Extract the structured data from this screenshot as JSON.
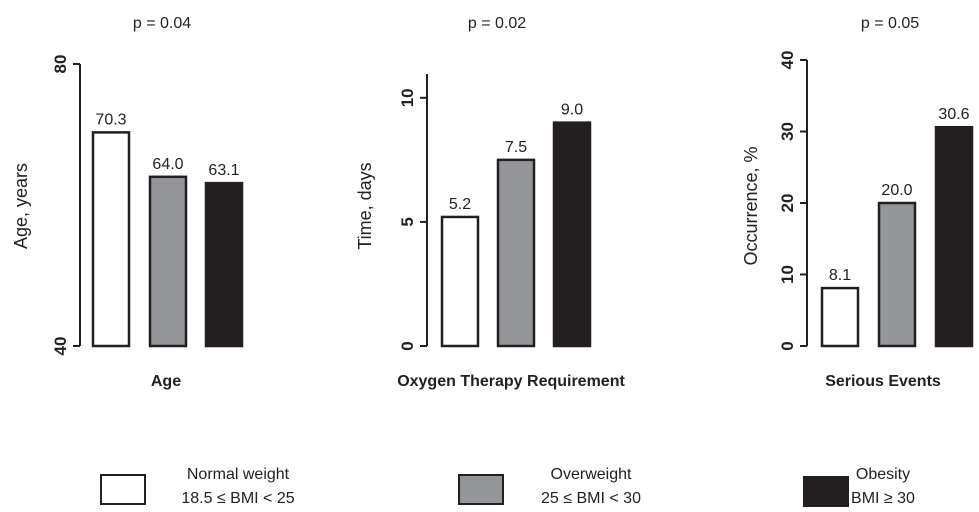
{
  "chart_data": [
    {
      "type": "bar",
      "title": "p = 0.04",
      "xlabel": "Age",
      "ylabel": "Age, years",
      "ylim": [
        40,
        80
      ],
      "yticks": [
        40,
        80
      ],
      "categories": [
        "Normal weight",
        "Overweight",
        "Obesity"
      ],
      "values": [
        70.3,
        64.0,
        63.1
      ],
      "value_labels": [
        "70.3",
        "64.0",
        "63.1"
      ]
    },
    {
      "type": "bar",
      "title": "p = 0.02",
      "xlabel": "Oxygen Therapy Requirement",
      "ylabel": "Time, days",
      "ylim": [
        0,
        11
      ],
      "yticks": [
        0,
        5,
        10
      ],
      "categories": [
        "Normal weight",
        "Overweight",
        "Obesity"
      ],
      "values": [
        5.2,
        7.5,
        9.0
      ],
      "value_labels": [
        "5.2",
        "7.5",
        "9.0"
      ]
    },
    {
      "type": "bar",
      "title": "p = 0.05",
      "xlabel": "Serious Events",
      "ylabel": "Occurrence, %",
      "ylim": [
        0,
        40
      ],
      "yticks": [
        0,
        10,
        20,
        30,
        40
      ],
      "categories": [
        "Normal weight",
        "Overweight",
        "Obesity"
      ],
      "values": [
        8.1,
        20.0,
        30.6
      ],
      "value_labels": [
        "8.1",
        "20.0",
        "30.6"
      ]
    }
  ],
  "legend": [
    {
      "name": "Normal weight",
      "range": "18.5 ≤ BMI < 25",
      "color": "#ffffff"
    },
    {
      "name": "Overweight",
      "range": "25 ≤ BMI < 30",
      "color": "#939598"
    },
    {
      "name": "Obesity",
      "range": "BMI ≥ 30",
      "color": "#231f20"
    }
  ],
  "colors": {
    "normal": "#ffffff",
    "overweight": "#939598",
    "obesity": "#231f20",
    "outline": "#231f20"
  }
}
